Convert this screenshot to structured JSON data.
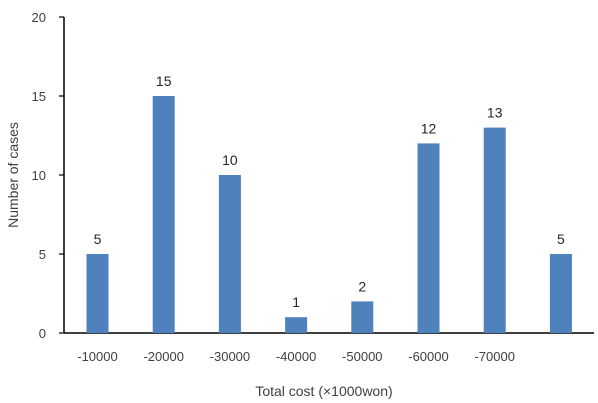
{
  "chart_data": {
    "type": "bar",
    "categories": [
      "-10000",
      "-20000",
      "-30000",
      "-40000",
      "-50000",
      "-60000",
      "-70000",
      ""
    ],
    "values": [
      5,
      15,
      10,
      1,
      2,
      12,
      13,
      5
    ],
    "data_labels": [
      "5",
      "15",
      "10",
      "1",
      "2",
      "12",
      "13",
      "5"
    ],
    "xlabel": "Total cost (×1000won)",
    "ylabel": "Number  of cases",
    "ylim": [
      0,
      20
    ],
    "yticks": [
      0,
      5,
      10,
      15,
      20
    ],
    "grid": false,
    "bar_color": "#4f81bd",
    "axis_color": "#000000"
  }
}
